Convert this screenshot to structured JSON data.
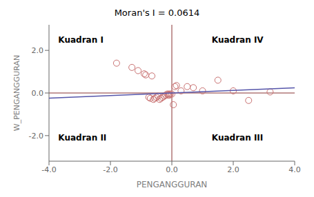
{
  "chart_data": {
    "type": "scatter",
    "title": "Moran's I = 0.0614",
    "xlabel": "PENGANGGURAN",
    "ylabel": "W_PENGANGGURAN",
    "series": [
      {
        "type": "scatter",
        "color": "#c87070",
        "marker": "circle",
        "x": [
          -1.8,
          -1.3,
          -1.1,
          -0.9,
          -0.85,
          -0.75,
          -0.7,
          -0.65,
          -0.6,
          -0.55,
          -0.5,
          -0.45,
          -0.4,
          -0.35,
          -0.3,
          -0.25,
          -0.2,
          -0.15,
          -0.12,
          -0.1,
          -0.08,
          -0.05,
          0.0,
          0.05,
          0.1,
          0.15,
          0.3,
          0.5,
          0.7,
          1.0,
          1.5,
          2.0,
          2.5,
          3.2
        ],
        "values": [
          1.4,
          1.2,
          1.05,
          0.9,
          0.85,
          -0.2,
          -0.25,
          0.8,
          -0.3,
          -0.25,
          -0.2,
          -0.15,
          -0.3,
          -0.25,
          -0.2,
          -0.15,
          -0.1,
          -0.05,
          -0.1,
          -0.05,
          -0.1,
          -0.05,
          -0.05,
          -0.55,
          0.3,
          0.35,
          0.1,
          0.3,
          0.25,
          0.1,
          0.6,
          0.1,
          -0.35,
          0.05
        ]
      },
      {
        "type": "line",
        "color": "#5555aa",
        "x": [
          -4.0,
          4.0
        ],
        "values": [
          -0.2456,
          0.2456
        ]
      }
    ],
    "xlim": [
      -4.0,
      4.0
    ],
    "ylim": [
      -3.2,
      3.2
    ],
    "xticks": [
      {
        "value": -4.0,
        "label": "-4.0"
      },
      {
        "value": -2.0,
        "label": "-2.0"
      },
      {
        "value": 0.0,
        "label": "0.0"
      },
      {
        "value": 2.0,
        "label": "2.0"
      },
      {
        "value": 4.0,
        "label": "4.0"
      }
    ],
    "yticks": [
      {
        "value": -2.0,
        "label": "-2.0"
      },
      {
        "value": 0.0,
        "label": "0.0"
      },
      {
        "value": 2.0,
        "label": "2.0"
      }
    ],
    "grid": false,
    "annotations": [
      {
        "text": "Kuadran I",
        "x": -3.7,
        "y": 2.5
      },
      {
        "text": "Kuadran IV",
        "x": 1.3,
        "y": 2.5
      },
      {
        "text": "Kuadran II",
        "x": -3.7,
        "y": -2.1
      },
      {
        "text": "Kuadran III",
        "x": 1.3,
        "y": -2.1
      }
    ],
    "reference_lines": [
      {
        "axis": "x",
        "value": 0,
        "color": "#883333"
      },
      {
        "axis": "y",
        "value": 0,
        "color": "#883333"
      }
    ]
  }
}
